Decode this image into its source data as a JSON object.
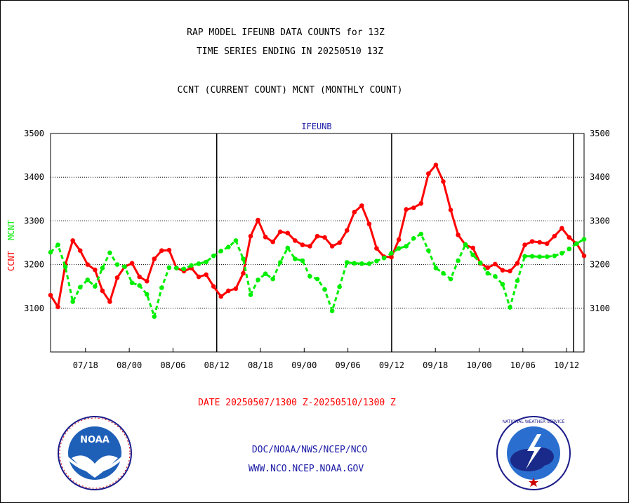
{
  "header": {
    "line1": "RAP MODEL IFEUNB DATA COUNTS for 13Z",
    "line2": "TIME SERIES ENDING IN 20250510 13Z",
    "line3": "CCNT (CURRENT COUNT) MCNT (MONTHLY COUNT)"
  },
  "footer": {
    "date_range": "DATE 20250507/1300 Z-20250510/1300 Z",
    "org": "DOC/NOAA/NWS/NCEP/NCO",
    "url": "WWW.NCO.NCEP.NOAA.GOV"
  },
  "logos": {
    "noaa_text": "NOAA",
    "nws_text": "NATIONAL WEATHER SERVICE"
  },
  "chart_data": {
    "type": "line",
    "title": "IFEUNB",
    "ylabel_ccnt": "CCNT",
    "ylabel_mcnt": "MCNT",
    "ylim": [
      3000,
      3500
    ],
    "yticks": [
      3100,
      3200,
      3300,
      3400,
      3500
    ],
    "xlim": [
      0,
      61
    ],
    "x_tick_positions": [
      4,
      9,
      14,
      19,
      24,
      29,
      34,
      39,
      44,
      49,
      54,
      59
    ],
    "x_tick_labels": [
      "07/18",
      "08/00",
      "08/06",
      "08/12",
      "08/18",
      "09/00",
      "09/06",
      "09/12",
      "09/18",
      "10/00",
      "10/06",
      "10/12"
    ],
    "day_boundaries": [
      19,
      39,
      59.8
    ],
    "grid_y": true,
    "colors": {
      "ccnt": "#ff0000",
      "mcnt": "#00ee00",
      "axis": "#000000",
      "title": "#1a1aa6"
    },
    "series": [
      {
        "name": "CCNT",
        "values": [
          3130,
          3103,
          3200,
          3255,
          3232,
          3200,
          3188,
          3140,
          3115,
          3170,
          3195,
          3203,
          3172,
          3162,
          3213,
          3232,
          3233,
          3192,
          3185,
          3192,
          3172,
          3177,
          3150,
          3127,
          3140,
          3145,
          3180,
          3265,
          3302,
          3263,
          3252,
          3275,
          3272,
          3255,
          3245,
          3242,
          3265,
          3262,
          3242,
          3250,
          3278,
          3320,
          3335,
          3293,
          3237,
          3218,
          3217,
          3257,
          3326,
          3330,
          3340,
          3408,
          3428,
          3390,
          3325,
          3268,
          3245,
          3238,
          3203,
          3193,
          3201,
          3187,
          3185,
          3203,
          3245,
          3253,
          3251,
          3248,
          3265,
          3283,
          3262,
          3248,
          3220
        ]
      },
      {
        "name": "MCNT",
        "values": [
          3228,
          3245,
          3195,
          3115,
          3148,
          3165,
          3150,
          3192,
          3227,
          3200,
          3195,
          3158,
          3152,
          3132,
          3081,
          3147,
          3193,
          3192,
          3190,
          3198,
          3202,
          3206,
          3220,
          3231,
          3240,
          3255,
          3213,
          3131,
          3165,
          3179,
          3167,
          3205,
          3238,
          3213,
          3209,
          3173,
          3167,
          3143,
          3094,
          3149,
          3205,
          3203,
          3202,
          3202,
          3208,
          3215,
          3226,
          3237,
          3242,
          3260,
          3270,
          3232,
          3192,
          3180,
          3167,
          3209,
          3246,
          3222,
          3204,
          3180,
          3173,
          3155,
          3102,
          3163,
          3219,
          3219,
          3218,
          3218,
          3220,
          3226,
          3236,
          3248,
          3258
        ]
      }
    ]
  }
}
